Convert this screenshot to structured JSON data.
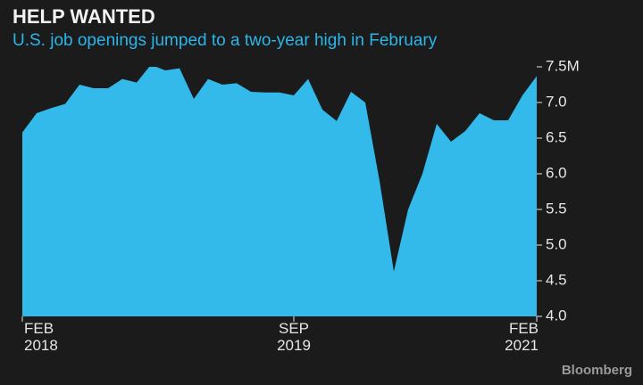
{
  "chart_data": {
    "type": "area",
    "title": "HELP WANTED",
    "subtitle": "U.S. job openings jumped to a two-year high in February",
    "source": "Bloomberg",
    "categories": [
      "FEB 2018",
      null,
      null,
      null,
      null,
      null,
      null,
      null,
      null,
      null,
      null,
      null,
      null,
      null,
      null,
      null,
      null,
      null,
      null,
      "SEP 2019",
      null,
      null,
      null,
      null,
      null,
      null,
      null,
      null,
      null,
      null,
      null,
      null,
      null,
      null,
      null,
      null,
      "FEB 2021"
    ],
    "values": [
      6.58,
      6.85,
      6.92,
      6.98,
      7.25,
      7.2,
      7.2,
      7.33,
      7.28,
      7.53,
      7.45,
      7.48,
      7.05,
      7.33,
      7.25,
      7.27,
      7.15,
      7.14,
      7.14,
      7.1,
      7.33,
      6.9,
      6.74,
      7.15,
      7.0,
      5.9,
      4.63,
      5.5,
      6.0,
      6.7,
      6.45,
      6.6,
      6.85,
      6.75,
      6.75,
      7.1,
      7.37
    ],
    "color": "#33b9ea",
    "ylim": [
      4.0,
      7.5
    ],
    "yticks": [
      {
        "value": 4.0,
        "label": "4.0"
      },
      4.5,
      {
        "value": 5.0,
        "label": "5.0"
      },
      5.5,
      {
        "value": 6.0,
        "label": "6.0"
      },
      6.5,
      {
        "value": 7.0,
        "label": "7.0"
      },
      {
        "value": 7.5,
        "label": "7.5M"
      }
    ]
  }
}
